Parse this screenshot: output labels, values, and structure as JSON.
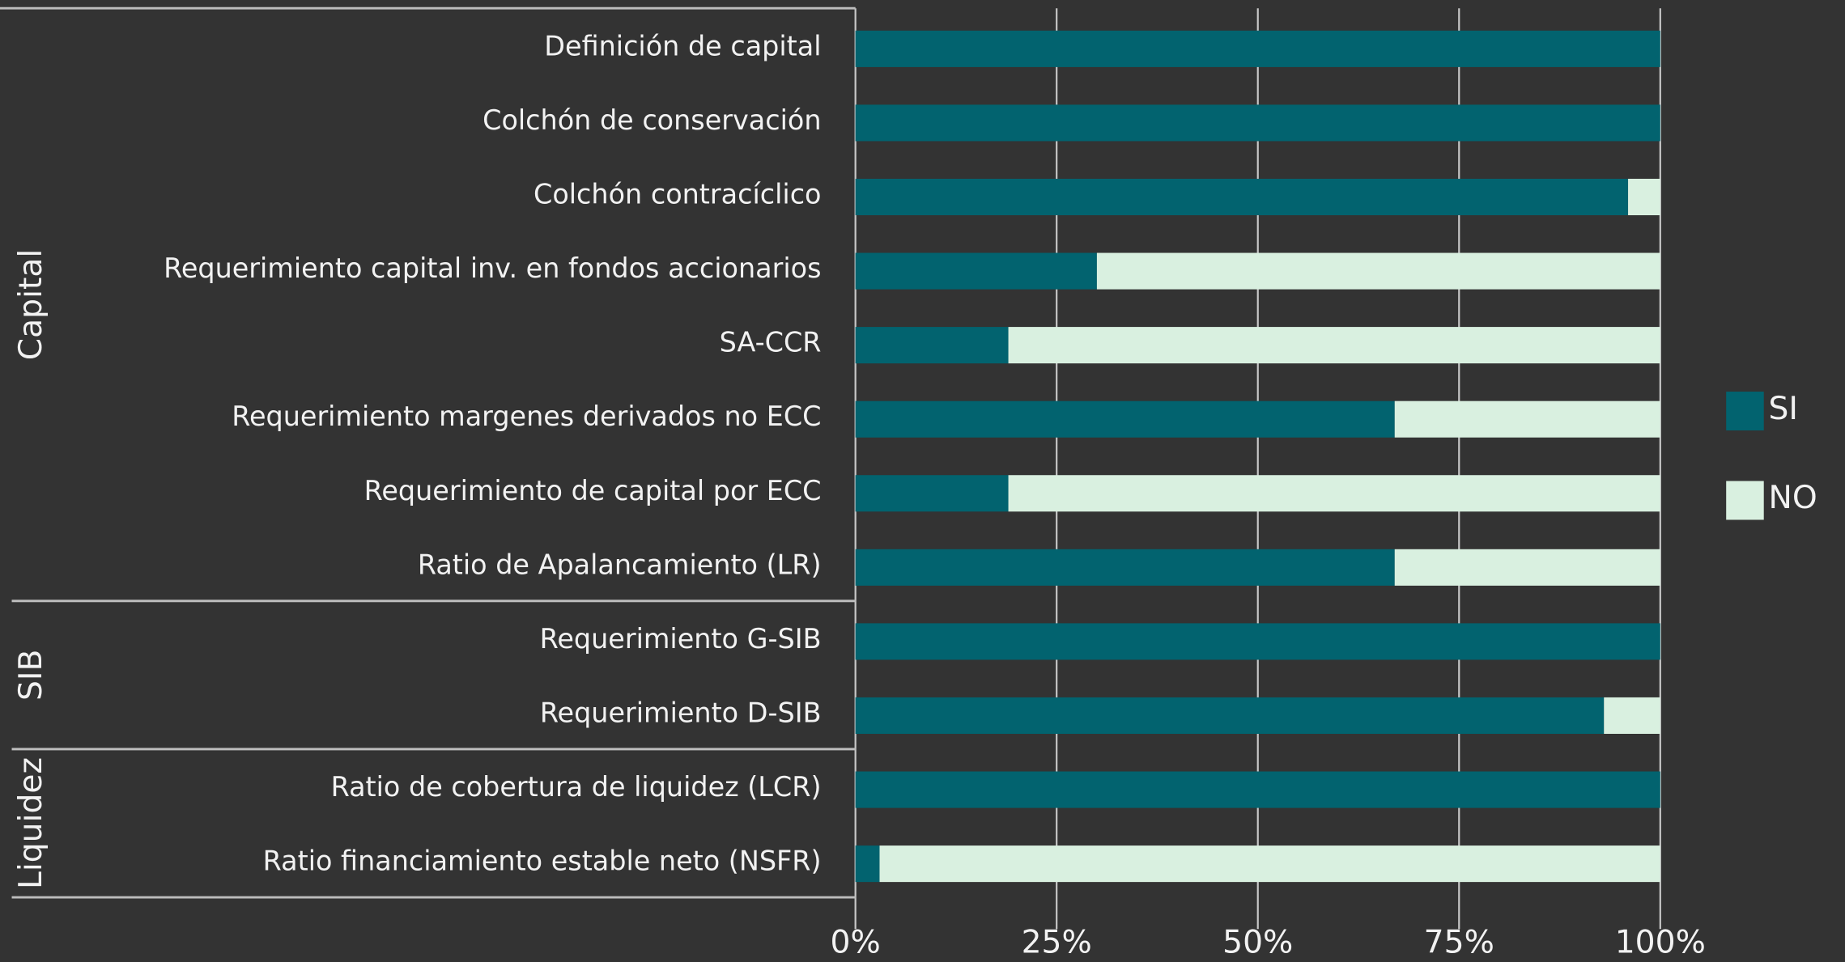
{
  "chart_data": {
    "type": "stacked_barh",
    "categories": [
      "Definición de capital",
      "Colchón de conservación",
      "Colchón contracíclico",
      "Requerimiento capital inv. en fondos accionarios",
      "SA-CCR",
      "Requerimiento margenes derivados no ECC",
      "Requerimiento de capital por ECC",
      "Ratio de Apalancamiento (LR)",
      "Requerimiento G-SIB",
      "Requerimiento D-SIB",
      "Ratio de cobertura de liquidez (LCR)",
      "Ratio financiamiento estable neto (NSFR)"
    ],
    "groups": [
      {
        "name": "Capital",
        "size": 8
      },
      {
        "name": "SIB",
        "size": 2
      },
      {
        "name": "Liquidez",
        "size": 2
      }
    ],
    "series": [
      {
        "name": "SI",
        "color": "#02636f",
        "values": [
          100,
          100,
          96,
          30,
          19,
          67,
          19,
          67,
          100,
          93,
          100,
          3
        ]
      },
      {
        "name": "NO",
        "color": "#d9f0e0",
        "values": [
          0,
          0,
          4,
          70,
          81,
          33,
          81,
          33,
          0,
          7,
          0,
          97
        ]
      }
    ],
    "xlim": [
      0,
      100
    ],
    "xticks": [
      {
        "value": 0,
        "label": "0%"
      },
      {
        "value": 25,
        "label": "25%"
      },
      {
        "value": 50,
        "label": "50%"
      },
      {
        "value": 75,
        "label": "75%"
      },
      {
        "value": 100,
        "label": "100%"
      }
    ],
    "grid": true,
    "legend": "right"
  }
}
